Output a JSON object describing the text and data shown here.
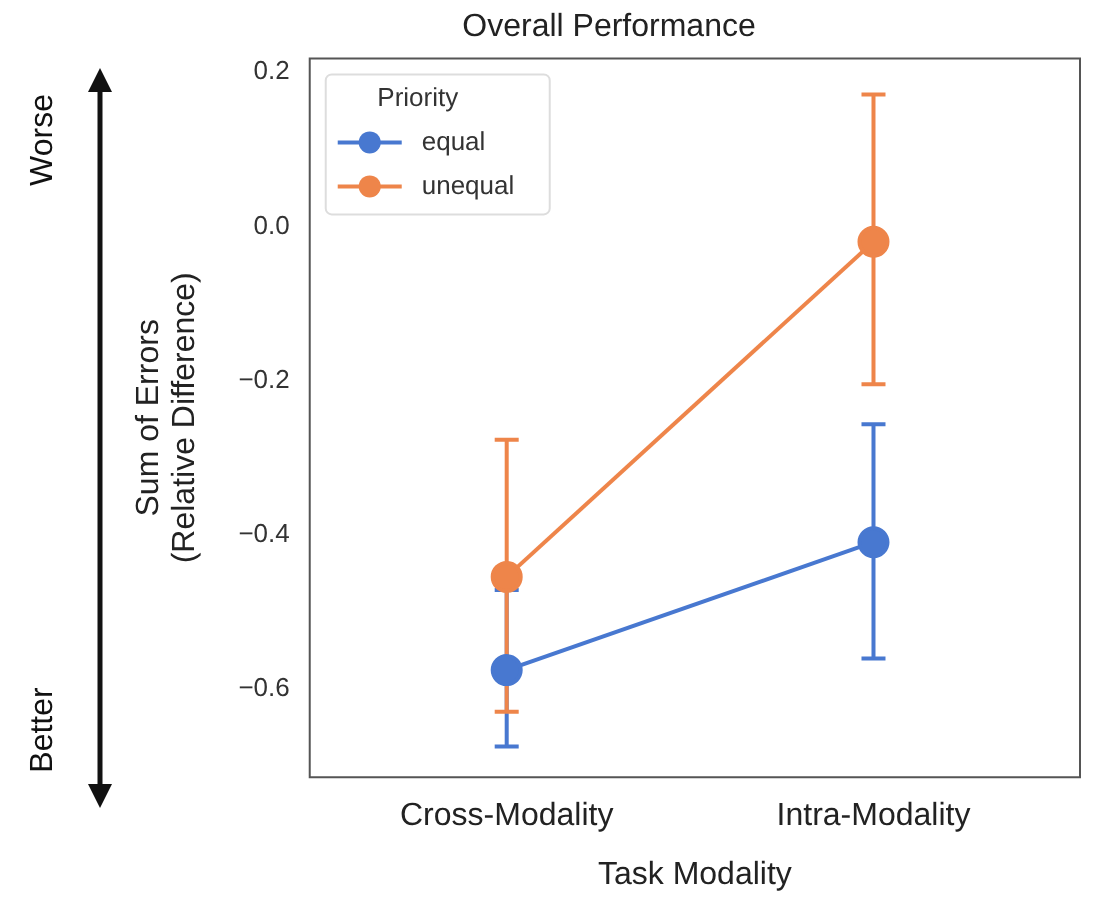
{
  "chart_data": {
    "type": "line",
    "title": "Overall Performance",
    "xlabel": "Task Modality",
    "ylabel": "Sum of Errors\n(Relative Difference)",
    "legend_title": "Priority",
    "categories": [
      "Cross-Modality",
      "Intra-Modality"
    ],
    "series": [
      {
        "name": "equal",
        "color": "#4878d0",
        "values": [
          -0.576,
          -0.41
        ],
        "errors": [
          [
            -0.675,
            -0.472
          ],
          [
            -0.561,
            -0.257
          ]
        ]
      },
      {
        "name": "unequal",
        "color": "#ee854a",
        "values": [
          -0.455,
          -0.02
        ],
        "errors": [
          [
            -0.63,
            -0.277
          ],
          [
            -0.205,
            0.171
          ]
        ]
      }
    ],
    "ylim": [
      -0.715,
      0.218
    ],
    "yticks": [
      {
        "value": -0.6,
        "label": "−0.6"
      },
      {
        "value": -0.4,
        "label": "−0.4"
      },
      {
        "value": -0.2,
        "label": "−0.2"
      },
      {
        "value": 0,
        "label": "0.0"
      },
      {
        "value": 0.2,
        "label": "0.2"
      }
    ],
    "grid": false,
    "legend": "top left",
    "marker": "circle",
    "line_style": "solid",
    "annotations": [
      "Worse",
      "Better"
    ]
  }
}
